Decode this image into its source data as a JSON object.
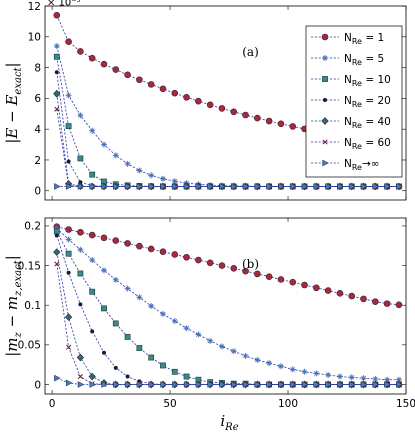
{
  "chart_data": [
    {
      "type": "line",
      "panel_label": "(a)",
      "ylabel": "|E − E_exact|",
      "ylabel_parts": {
        "main": "|E − E",
        "sub": "exact",
        "end": "|"
      },
      "y_exponent": "× 10⁻⁵",
      "xlim": [
        -3,
        150
      ],
      "ylim": [
        -0.6,
        12
      ],
      "yticks": [
        0,
        2,
        4,
        6,
        8,
        10,
        12
      ],
      "xticks": [
        0,
        50,
        100,
        150
      ],
      "legend_position": "top-right",
      "series": [
        {
          "name": "N_Re = 1",
          "marker": "circle",
          "color": "#a8283c",
          "x": [
            2,
            7,
            12,
            17,
            22,
            27,
            32,
            37,
            42,
            47,
            52,
            57,
            62,
            67,
            72,
            77,
            82,
            87,
            92,
            97,
            102,
            107,
            112,
            117,
            122,
            127,
            132,
            137,
            142,
            147
          ],
          "y": [
            11.4,
            9.68,
            9.05,
            8.61,
            8.22,
            7.87,
            7.53,
            7.21,
            6.91,
            6.62,
            6.34,
            6.07,
            5.82,
            5.58,
            5.35,
            5.13,
            4.92,
            4.72,
            4.53,
            4.35,
            4.18,
            4.02,
            3.87,
            3.73,
            3.6,
            3.48,
            3.37,
            3.27,
            3.18,
            3.1
          ]
        },
        {
          "name": "N_Re = 5",
          "marker": "star",
          "color": "#4a6fb8",
          "x": [
            2,
            7,
            12,
            17,
            22,
            27,
            32,
            37,
            42,
            47,
            52,
            57,
            62,
            67,
            72,
            77,
            82,
            87,
            92,
            97,
            102,
            107,
            112,
            117,
            122,
            127,
            132,
            137,
            142,
            147
          ],
          "y": [
            9.4,
            6.2,
            4.9,
            3.9,
            3.0,
            2.3,
            1.75,
            1.32,
            1.0,
            0.78,
            0.62,
            0.5,
            0.42,
            0.37,
            0.33,
            0.31,
            0.3,
            0.29,
            0.29,
            0.28,
            0.28,
            0.28,
            0.28,
            0.28,
            0.28,
            0.28,
            0.28,
            0.28,
            0.28,
            0.28
          ]
        },
        {
          "name": "N_Re = 10",
          "marker": "square",
          "color": "#3a8a8a",
          "x": [
            2,
            7,
            12,
            17,
            22,
            27,
            32,
            37,
            42,
            47,
            52,
            57,
            62,
            67,
            72,
            77,
            82,
            87,
            92,
            97,
            102,
            107,
            112,
            117,
            122,
            127,
            132,
            137,
            142,
            147
          ],
          "y": [
            8.7,
            4.2,
            2.1,
            1.05,
            0.6,
            0.42,
            0.35,
            0.31,
            0.29,
            0.28,
            0.28,
            0.28,
            0.28,
            0.28,
            0.28,
            0.28,
            0.28,
            0.28,
            0.28,
            0.28,
            0.28,
            0.28,
            0.28,
            0.28,
            0.28,
            0.28,
            0.28,
            0.28,
            0.28,
            0.28
          ]
        },
        {
          "name": "N_Re = 20",
          "marker": "dot",
          "color": "#1a1a3a",
          "x": [
            2,
            7,
            12,
            17,
            22,
            27,
            32,
            37,
            42,
            47,
            52,
            57,
            62,
            67,
            72,
            77,
            82,
            87,
            92,
            97,
            102,
            107,
            112,
            117,
            122,
            127,
            132,
            137,
            142,
            147
          ],
          "y": [
            7.7,
            1.9,
            0.55,
            0.33,
            0.29,
            0.28,
            0.28,
            0.28,
            0.28,
            0.28,
            0.28,
            0.28,
            0.28,
            0.28,
            0.28,
            0.28,
            0.28,
            0.28,
            0.28,
            0.28,
            0.28,
            0.28,
            0.28,
            0.28,
            0.28,
            0.28,
            0.28,
            0.28,
            0.28,
            0.28
          ]
        },
        {
          "name": "N_Re = 40",
          "marker": "diamond",
          "color": "#3a6a6a",
          "x": [
            2,
            7,
            12,
            17,
            22,
            27,
            32,
            37,
            42,
            47,
            52,
            57,
            62,
            67,
            72,
            77,
            82,
            87,
            92,
            97,
            102,
            107,
            112,
            117,
            122,
            127,
            132,
            137,
            142,
            147
          ],
          "y": [
            6.3,
            0.45,
            0.29,
            0.28,
            0.28,
            0.28,
            0.28,
            0.28,
            0.28,
            0.28,
            0.28,
            0.28,
            0.28,
            0.28,
            0.28,
            0.28,
            0.28,
            0.28,
            0.28,
            0.28,
            0.28,
            0.28,
            0.28,
            0.28,
            0.28,
            0.28,
            0.28,
            0.28,
            0.28,
            0.28
          ]
        },
        {
          "name": "N_Re = 60",
          "marker": "x",
          "color": "#6a1a2a",
          "x": [
            2,
            7,
            12,
            17,
            22,
            27,
            32,
            37,
            42,
            47,
            52,
            57,
            62,
            67,
            72,
            77,
            82,
            87,
            92,
            97,
            102,
            107,
            112,
            117,
            122,
            127,
            132,
            137,
            142,
            147
          ],
          "y": [
            5.3,
            0.33,
            0.28,
            0.28,
            0.28,
            0.28,
            0.28,
            0.28,
            0.28,
            0.28,
            0.28,
            0.28,
            0.28,
            0.28,
            0.28,
            0.28,
            0.28,
            0.28,
            0.28,
            0.28,
            0.28,
            0.28,
            0.28,
            0.28,
            0.28,
            0.28,
            0.28,
            0.28,
            0.28,
            0.28
          ]
        },
        {
          "name": "N_Re→∞",
          "marker": "triangle",
          "color": "#4a7ab8",
          "x": [
            2,
            7,
            12,
            17,
            22,
            27,
            32,
            37,
            42,
            47,
            52,
            57,
            62,
            67,
            72,
            77,
            82,
            87,
            92,
            97,
            102,
            107,
            112,
            117,
            122,
            127,
            132,
            137,
            142,
            147
          ],
          "y": [
            0.28,
            0.28,
            0.28,
            0.28,
            0.28,
            0.28,
            0.28,
            0.28,
            0.28,
            0.28,
            0.28,
            0.28,
            0.28,
            0.28,
            0.28,
            0.28,
            0.28,
            0.28,
            0.28,
            0.28,
            0.28,
            0.28,
            0.28,
            0.28,
            0.28,
            0.28,
            0.28,
            0.28,
            0.28,
            0.28
          ]
        }
      ]
    },
    {
      "type": "line",
      "panel_label": "(b)",
      "ylabel": "|m_z − m_z,exact|",
      "ylabel_parts": {
        "main": "|m",
        "sub1": "z",
        "mid": " − m",
        "sub2": "z,exact",
        "end": "|"
      },
      "xlabel": "i_Re",
      "xlabel_parts": {
        "main": "i",
        "sub": "Re"
      },
      "xlim": [
        -3,
        150
      ],
      "ylim": [
        -0.012,
        0.21
      ],
      "yticks": [
        0,
        0.05,
        0.1,
        0.15,
        0.2
      ],
      "ytick_labels": [
        "0",
        "0.05",
        "0.1",
        "0.15",
        "0.2"
      ],
      "xticks": [
        0,
        50,
        100,
        150
      ],
      "xtick_labels": [
        "0",
        "50",
        "100",
        "150"
      ],
      "series": [
        {
          "name": "N_Re = 1",
          "marker": "circle",
          "color": "#a8283c",
          "x": [
            2,
            7,
            12,
            17,
            22,
            27,
            32,
            37,
            42,
            47,
            52,
            57,
            62,
            67,
            72,
            77,
            82,
            87,
            92,
            97,
            102,
            107,
            112,
            117,
            122,
            127,
            132,
            137,
            142,
            147
          ],
          "y": [
            0.199,
            0.1955,
            0.192,
            0.1885,
            0.185,
            0.1815,
            0.178,
            0.1745,
            0.171,
            0.1675,
            0.164,
            0.1605,
            0.157,
            0.1535,
            0.15,
            0.1465,
            0.143,
            0.1395,
            0.136,
            0.1325,
            0.129,
            0.1255,
            0.122,
            0.1185,
            0.115,
            0.1115,
            0.108,
            0.1045,
            0.102,
            0.1005
          ]
        },
        {
          "name": "N_Re = 5",
          "marker": "star",
          "color": "#4a6fb8",
          "x": [
            2,
            7,
            12,
            17,
            22,
            27,
            32,
            37,
            42,
            47,
            52,
            57,
            62,
            67,
            72,
            77,
            82,
            87,
            92,
            97,
            102,
            107,
            112,
            117,
            122,
            127,
            132,
            137,
            142,
            147
          ],
          "y": [
            0.197,
            0.183,
            0.17,
            0.157,
            0.144,
            0.132,
            0.121,
            0.11,
            0.099,
            0.089,
            0.08,
            0.071,
            0.063,
            0.055,
            0.048,
            0.042,
            0.036,
            0.031,
            0.027,
            0.023,
            0.019,
            0.016,
            0.014,
            0.012,
            0.01,
            0.009,
            0.008,
            0.007,
            0.006,
            0.006
          ]
        },
        {
          "name": "N_Re = 10",
          "marker": "square",
          "color": "#3a8a8a",
          "x": [
            2,
            7,
            12,
            17,
            22,
            27,
            32,
            37,
            42,
            47,
            52,
            57,
            62,
            67,
            72,
            77,
            82,
            87,
            92,
            97,
            102,
            107,
            112,
            117,
            122,
            127,
            132,
            137,
            142,
            147
          ],
          "y": [
            0.193,
            0.165,
            0.14,
            0.117,
            0.096,
            0.077,
            0.06,
            0.046,
            0.034,
            0.024,
            0.016,
            0.01,
            0.006,
            0.003,
            0.002,
            0.001,
            0.001,
            0,
            0,
            0,
            0,
            0,
            0,
            0,
            0,
            0,
            0,
            0,
            0,
            0
          ]
        },
        {
          "name": "N_Re = 20",
          "marker": "dot",
          "color": "#1a1a3a",
          "x": [
            2,
            7,
            12,
            17,
            22,
            27,
            32,
            37,
            42,
            47,
            52,
            57,
            62,
            67,
            72,
            77,
            82,
            87,
            92,
            97,
            102,
            107,
            112,
            117,
            122,
            127,
            132,
            137,
            142,
            147
          ],
          "y": [
            0.188,
            0.141,
            0.101,
            0.067,
            0.04,
            0.021,
            0.01,
            0.004,
            0.001,
            0,
            0,
            0,
            0,
            0,
            0,
            0,
            0,
            0,
            0,
            0,
            0,
            0,
            0,
            0,
            0,
            0,
            0,
            0,
            0,
            0
          ]
        },
        {
          "name": "N_Re = 40",
          "marker": "diamond",
          "color": "#3a6a6a",
          "x": [
            2,
            7,
            12,
            17,
            22,
            27,
            32,
            37,
            42,
            47,
            52,
            57,
            62,
            67,
            72,
            77,
            82,
            87,
            92,
            97,
            102,
            107,
            112,
            117,
            122,
            127,
            132,
            137,
            142,
            147
          ],
          "y": [
            0.167,
            0.085,
            0.034,
            0.01,
            0.002,
            0,
            0,
            0,
            0,
            0,
            0,
            0,
            0,
            0,
            0,
            0,
            0,
            0,
            0,
            0,
            0,
            0,
            0,
            0,
            0,
            0,
            0,
            0,
            0,
            0
          ]
        },
        {
          "name": "N_Re = 60",
          "marker": "x",
          "color": "#6a1a2a",
          "x": [
            2,
            7,
            12,
            17,
            22,
            27,
            32,
            37,
            42,
            47,
            52,
            57,
            62,
            67,
            72,
            77,
            82,
            87,
            92,
            97,
            102,
            107,
            112,
            117,
            122,
            127,
            132,
            137,
            142,
            147
          ],
          "y": [
            0.152,
            0.047,
            0.01,
            0.001,
            0,
            0,
            0,
            0,
            0,
            0,
            0,
            0,
            0,
            0,
            0,
            0,
            0,
            0,
            0,
            0,
            0,
            0,
            0,
            0,
            0,
            0,
            0,
            0,
            0,
            0
          ]
        },
        {
          "name": "N_Re→∞",
          "marker": "triangle",
          "color": "#4a7ab8",
          "x": [
            2,
            7,
            12,
            17,
            22,
            27,
            32,
            37,
            42,
            47,
            52,
            57,
            62,
            67,
            72,
            77,
            82,
            87,
            92,
            97,
            102,
            107,
            112,
            117,
            122,
            127,
            132,
            137,
            142,
            147
          ],
          "y": [
            0.008,
            0.002,
            0,
            0,
            0,
            0,
            0,
            0,
            0,
            0,
            0,
            0,
            0,
            0,
            0,
            0,
            0,
            0,
            0,
            0,
            0,
            0,
            0,
            0,
            0,
            0,
            0,
            0,
            0,
            0
          ]
        }
      ]
    }
  ]
}
